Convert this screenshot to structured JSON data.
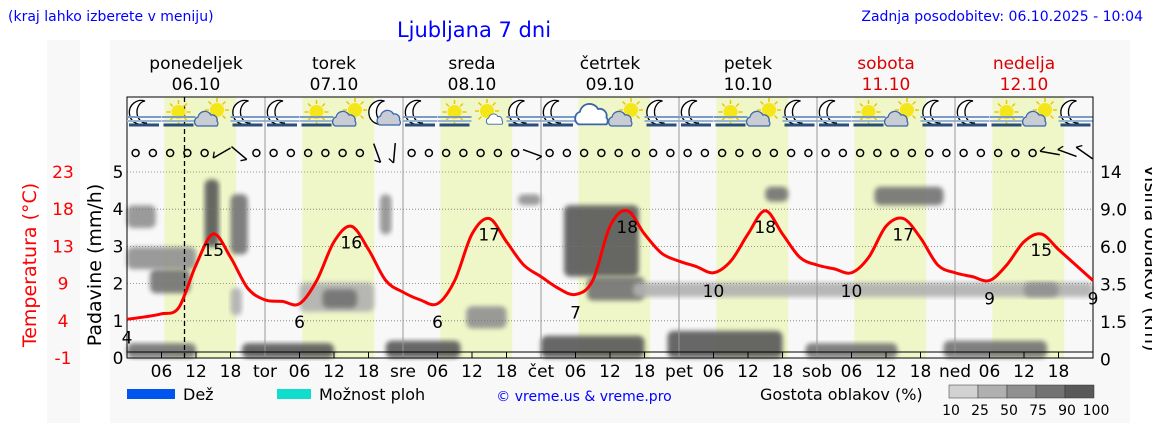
{
  "header": {
    "left_note": "(kraj lahko izberete v meniju)",
    "title": "Ljubljana 7 dni",
    "updated": "Zadnja posodobitev: 06.10.2025 - 10:04"
  },
  "colors": {
    "temperature": "#ff0000",
    "title": "#0000ff",
    "weekend": "#dd0000",
    "daylight": "#eff7c8",
    "rain": "#0055ee",
    "showers": "#11ddcc"
  },
  "chart_data": {
    "type": "line",
    "days": [
      {
        "name": "ponedeljek",
        "date": "06.10",
        "abbr": "",
        "weekend": false
      },
      {
        "name": "torek",
        "date": "07.10",
        "abbr": "tor",
        "weekend": false
      },
      {
        "name": "sreda",
        "date": "08.10",
        "abbr": "sre",
        "weekend": false
      },
      {
        "name": "četrtek",
        "date": "09.10",
        "abbr": "čet",
        "weekend": false
      },
      {
        "name": "petek",
        "date": "10.10",
        "abbr": "pet",
        "weekend": false
      },
      {
        "name": "sobota",
        "date": "11.10",
        "abbr": "sob",
        "weekend": true
      },
      {
        "name": "nedelja",
        "date": "12.10",
        "abbr": "ned",
        "weekend": true
      }
    ],
    "hour_ticks": [
      "06",
      "12",
      "18"
    ],
    "now_hour": 10,
    "daylight_hours": [
      6.5,
      19
    ],
    "temperature_axis": {
      "label": "Temperatura (°C)",
      "ticks": [
        "23",
        "18",
        "13",
        "9",
        "4",
        "-1"
      ],
      "range": [
        -1,
        23
      ]
    },
    "precip_axis": {
      "label": "Padavine (mm/h)",
      "ticks": [
        "5",
        "4",
        "3",
        "2",
        "1",
        "0"
      ],
      "range": [
        0,
        5
      ]
    },
    "cloud_axis": {
      "label": "Višina oblakov (km)",
      "ticks": [
        "14",
        "9.0",
        "6.0",
        "3.5",
        "1.5",
        "0"
      ]
    },
    "temperature_3h": [
      4.0,
      4.3,
      4.7,
      5.5,
      11,
      15,
      12,
      8,
      6.5,
      6.3,
      6,
      9,
      14,
      16,
      13,
      9,
      7.5,
      6.5,
      6,
      9,
      15,
      17,
      14,
      11,
      9.5,
      8,
      7.2,
      9,
      16,
      18,
      15,
      12.5,
      11.5,
      10.8,
      10,
      11.5,
      15,
      18,
      15,
      12,
      11,
      10.5,
      10,
      12,
      16,
      17,
      14.5,
      11,
      10,
      9.5,
      9,
      11,
      14,
      15,
      13,
      11,
      9
    ],
    "temperature_labels": [
      {
        "hour": 0,
        "value": "4"
      },
      {
        "hour": 15,
        "value": "15"
      },
      {
        "hour": 30,
        "value": "6"
      },
      {
        "hour": 39,
        "value": "16"
      },
      {
        "hour": 54,
        "value": "6"
      },
      {
        "hour": 63,
        "value": "17"
      },
      {
        "hour": 78,
        "value": "7"
      },
      {
        "hour": 87,
        "value": "18"
      },
      {
        "hour": 102,
        "value": "10"
      },
      {
        "hour": 111,
        "value": "18"
      },
      {
        "hour": 126,
        "value": "10"
      },
      {
        "hour": 135,
        "value": "17"
      },
      {
        "hour": 150,
        "value": "9"
      },
      {
        "hour": 159,
        "value": "15"
      },
      {
        "hour": 168,
        "value": "9"
      }
    ],
    "weather_icons": [
      "moon-fog",
      "sun-fog",
      "sun-cloud",
      "moon-fog",
      "moon-fog",
      "sun-fog",
      "sun-cloud",
      "moon-cloud",
      "moon-fog",
      "sun-fog",
      "sun-small-cloud",
      "moon-fog",
      "moon-fog",
      "cloud",
      "sun-cloud",
      "moon-fog",
      "moon-fog",
      "sun-fog",
      "sun-cloud",
      "moon-fog",
      "moon-fog",
      "sun-fog",
      "sun-cloud",
      "moon-fog",
      "moon-fog",
      "sun-fog",
      "sun-cloud",
      "moon-fog"
    ],
    "wind": [
      {
        "hour": 1.5,
        "dir": null
      },
      {
        "hour": 4.5,
        "dir": null
      },
      {
        "hour": 7.5,
        "dir": null
      },
      {
        "hour": 10.5,
        "dir": null
      },
      {
        "hour": 13.5,
        "dir": null
      },
      {
        "hour": 16.5,
        "dir": 60
      },
      {
        "hour": 19.5,
        "dir": -50
      },
      {
        "hour": 22.5,
        "dir": null
      },
      {
        "hour": 25.5,
        "dir": null
      },
      {
        "hour": 28.5,
        "dir": null
      },
      {
        "hour": 31.5,
        "dir": null
      },
      {
        "hour": 34.5,
        "dir": null
      },
      {
        "hour": 37.5,
        "dir": null
      },
      {
        "hour": 40.5,
        "dir": null
      },
      {
        "hour": 43.5,
        "dir": -20
      },
      {
        "hour": 46.5,
        "dir": 5
      },
      {
        "hour": 49.5,
        "dir": null
      },
      {
        "hour": 52.5,
        "dir": null
      },
      {
        "hour": 55.5,
        "dir": null
      },
      {
        "hour": 58.5,
        "dir": null
      },
      {
        "hour": 61.5,
        "dir": null
      },
      {
        "hour": 64.5,
        "dir": null
      },
      {
        "hour": 67.5,
        "dir": null
      },
      {
        "hour": 70.5,
        "dir": -70
      },
      {
        "hour": 73.5,
        "dir": null
      },
      {
        "hour": 76.5,
        "dir": null
      },
      {
        "hour": 79.5,
        "dir": null
      },
      {
        "hour": 82.5,
        "dir": null
      },
      {
        "hour": 85.5,
        "dir": null
      },
      {
        "hour": 88.5,
        "dir": null
      },
      {
        "hour": 91.5,
        "dir": null
      },
      {
        "hour": 94.5,
        "dir": null
      },
      {
        "hour": 97.5,
        "dir": null
      },
      {
        "hour": 100.5,
        "dir": null
      },
      {
        "hour": 103.5,
        "dir": null
      },
      {
        "hour": 106.5,
        "dir": null
      },
      {
        "hour": 109.5,
        "dir": null
      },
      {
        "hour": 112.5,
        "dir": null
      },
      {
        "hour": 115.5,
        "dir": null
      },
      {
        "hour": 118.5,
        "dir": null
      },
      {
        "hour": 121.5,
        "dir": null
      },
      {
        "hour": 124.5,
        "dir": null
      },
      {
        "hour": 127.5,
        "dir": null
      },
      {
        "hour": 130.5,
        "dir": null
      },
      {
        "hour": 133.5,
        "dir": null
      },
      {
        "hour": 136.5,
        "dir": null
      },
      {
        "hour": 139.5,
        "dir": null
      },
      {
        "hour": 142.5,
        "dir": null
      },
      {
        "hour": 145.5,
        "dir": null
      },
      {
        "hour": 148.5,
        "dir": null
      },
      {
        "hour": 151.5,
        "dir": null
      },
      {
        "hour": 154.5,
        "dir": null
      },
      {
        "hour": 157.5,
        "dir": null
      },
      {
        "hour": 160.5,
        "dir": 100
      },
      {
        "hour": 163.5,
        "dir": 110
      },
      {
        "hour": 166.5,
        "dir": 125
      }
    ],
    "cloud_cover": [
      {
        "h0": 0,
        "h1": 5,
        "km0": 7.5,
        "km1": 9.5,
        "density": 50
      },
      {
        "h0": 0,
        "h1": 12,
        "km0": 4.5,
        "km1": 6.0,
        "density": 50
      },
      {
        "h0": 4,
        "h1": 11,
        "km0": 3.0,
        "km1": 4.5,
        "density": 75
      },
      {
        "h0": 13.5,
        "h1": 16,
        "km0": 6.0,
        "km1": 13,
        "density": 90
      },
      {
        "h0": 18,
        "h1": 21,
        "km0": 5.5,
        "km1": 11,
        "density": 75
      },
      {
        "h0": 18,
        "h1": 20,
        "km0": 1.8,
        "km1": 3.3,
        "density": 25
      },
      {
        "h0": 30,
        "h1": 43,
        "km0": 2.0,
        "km1": 3.6,
        "density": 25
      },
      {
        "h0": 34,
        "h1": 40,
        "km0": 2.2,
        "km1": 3.2,
        "density": 75
      },
      {
        "h0": 44,
        "h1": 46,
        "km0": 7.0,
        "km1": 11,
        "density": 50
      },
      {
        "h0": 59,
        "h1": 66,
        "km0": 1.2,
        "km1": 2.3,
        "density": 50
      },
      {
        "h0": 68,
        "h1": 72,
        "km0": 9.5,
        "km1": 11,
        "density": 50
      },
      {
        "h0": 76,
        "h1": 89,
        "km0": 4.0,
        "km1": 9.5,
        "density": 90
      },
      {
        "h0": 80,
        "h1": 90,
        "km0": 2.6,
        "km1": 4.0,
        "density": 75
      },
      {
        "h0": 88,
        "h1": 168,
        "km0": 2.8,
        "km1": 3.6,
        "density": 25
      },
      {
        "h0": 111,
        "h1": 115,
        "km0": 10,
        "km1": 12,
        "density": 75
      },
      {
        "h0": 130,
        "h1": 142,
        "km0": 9.5,
        "km1": 12,
        "density": 75
      },
      {
        "h0": 156,
        "h1": 162,
        "km0": 2.8,
        "km1": 3.6,
        "density": 50
      },
      {
        "h0": 0,
        "h1": 12,
        "km0": 0,
        "km1": 0.6,
        "density": 75
      },
      {
        "h0": 20,
        "h1": 36,
        "km0": 0,
        "km1": 0.6,
        "density": 90
      },
      {
        "h0": 45,
        "h1": 58,
        "km0": 0,
        "km1": 0.7,
        "density": 90
      },
      {
        "h0": 72,
        "h1": 90,
        "km0": 0,
        "km1": 0.9,
        "density": 90
      },
      {
        "h0": 94,
        "h1": 114,
        "km0": 0,
        "km1": 1.1,
        "density": 90
      },
      {
        "h0": 118,
        "h1": 134,
        "km0": 0,
        "km1": 0.6,
        "density": 75
      },
      {
        "h0": 142,
        "h1": 160,
        "km0": 0,
        "km1": 0.7,
        "density": 75
      }
    ]
  },
  "legend": {
    "rain": "Dež",
    "showers": "Možnost ploh",
    "copyright": "© vreme.us & vreme.pro",
    "cloud_density_label": "Gostota oblakov (%)",
    "density_levels": [
      "10",
      "25",
      "50",
      "75",
      "90",
      "100"
    ],
    "density_colors": [
      "#d2d2d2",
      "#b0b0b0",
      "#909090",
      "#727272",
      "#595959"
    ]
  }
}
